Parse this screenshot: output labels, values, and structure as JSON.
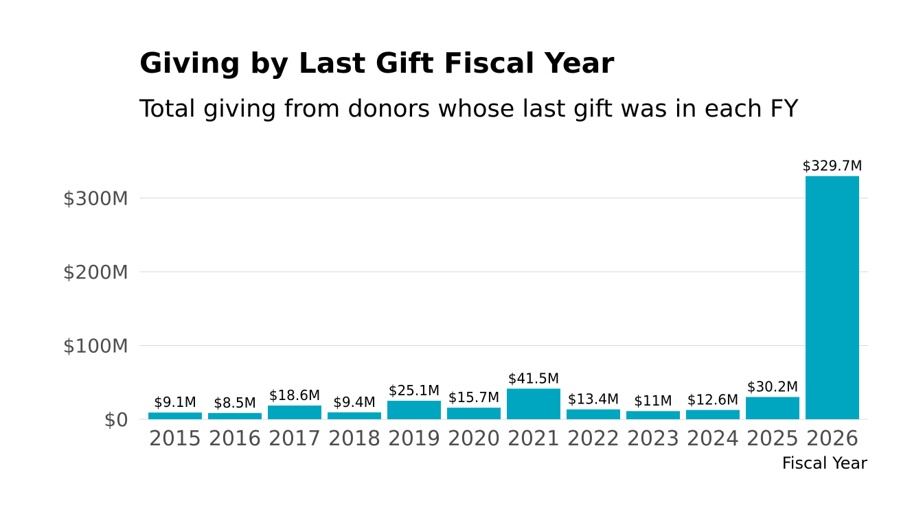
{
  "chart_data": {
    "type": "bar",
    "title": "Giving by Last Gift Fiscal Year",
    "subtitle": "Total giving from donors whose last gift was in each FY",
    "xlabel": "Fiscal Year",
    "ylabel": "",
    "categories": [
      "2015",
      "2016",
      "2017",
      "2018",
      "2019",
      "2020",
      "2021",
      "2022",
      "2023",
      "2024",
      "2025",
      "2026"
    ],
    "values": [
      9.1,
      8.5,
      18.6,
      9.4,
      25.1,
      15.7,
      41.5,
      13.4,
      11,
      12.6,
      30.2,
      329.7
    ],
    "value_units": "millions USD",
    "data_labels": [
      "$9.1M",
      "$8.5M",
      "$18.6M",
      "$9.4M",
      "$25.1M",
      "$15.7M",
      "$41.5M",
      "$13.4M",
      "$11M",
      "$12.6M",
      "$30.2M",
      "$329.7M"
    ],
    "yticks": [
      0,
      100,
      200,
      300
    ],
    "ytick_labels": [
      "$0",
      "$100M",
      "$200M",
      "$300M"
    ],
    "ylim": [
      0,
      330
    ],
    "grid": "horizontal",
    "legend": "none",
    "colors": {
      "bar": "#00A6BF",
      "grid": "#d9d9d9",
      "tick_text": "#4d4d4d",
      "text": "#000000"
    }
  }
}
